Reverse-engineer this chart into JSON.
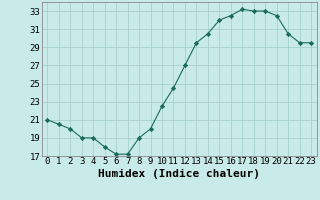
{
  "x": [
    0,
    1,
    2,
    3,
    4,
    5,
    6,
    7,
    8,
    9,
    10,
    11,
    12,
    13,
    14,
    15,
    16,
    17,
    18,
    19,
    20,
    21,
    22,
    23
  ],
  "y": [
    21,
    20.5,
    20,
    19,
    19,
    18,
    17.2,
    17.2,
    19,
    20,
    22.5,
    24.5,
    27,
    29.5,
    30.5,
    32,
    32.5,
    33.2,
    33,
    33,
    32.5,
    30.5,
    29.5,
    29.5
  ],
  "xlabel": "Humidex (Indice chaleur)",
  "ylabel": "",
  "ylim": [
    17,
    34
  ],
  "xlim": [
    -0.5,
    23.5
  ],
  "yticks": [
    17,
    19,
    21,
    23,
    25,
    27,
    29,
    31,
    33
  ],
  "xticks": [
    0,
    1,
    2,
    3,
    4,
    5,
    6,
    7,
    8,
    9,
    10,
    11,
    12,
    13,
    14,
    15,
    16,
    17,
    18,
    19,
    20,
    21,
    22,
    23
  ],
  "line_color": "#1a6b5a",
  "marker_color": "#1a6b5a",
  "bg_color": "#c8eae8",
  "grid_color": "#a0ccc8",
  "xlabel_fontsize": 8,
  "tick_fontsize": 6.5
}
